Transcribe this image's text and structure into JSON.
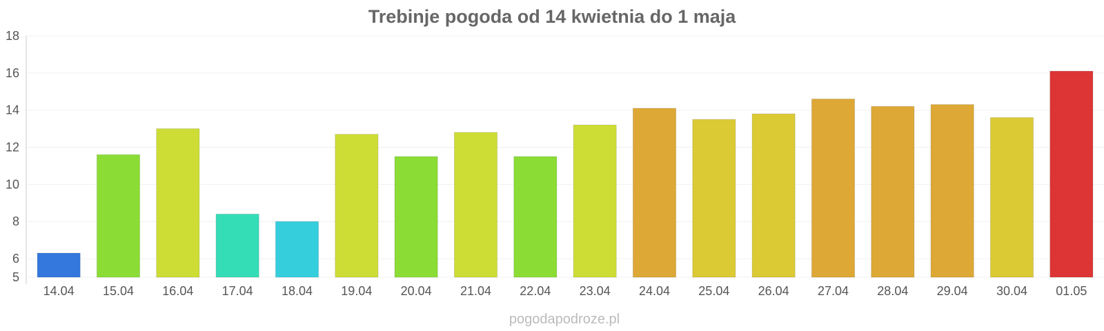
{
  "chart_data": {
    "type": "bar",
    "title": "Trebinje pogoda od 14 kwietnia do 1 maja",
    "categories": [
      "14.04",
      "15.04",
      "16.04",
      "17.04",
      "18.04",
      "19.04",
      "20.04",
      "21.04",
      "22.04",
      "23.04",
      "24.04",
      "25.04",
      "26.04",
      "27.04",
      "28.04",
      "29.04",
      "30.04",
      "01.05"
    ],
    "values": [
      6.3,
      11.6,
      13.0,
      8.4,
      8.0,
      12.7,
      11.5,
      12.8,
      11.5,
      13.2,
      14.1,
      13.5,
      13.8,
      14.6,
      14.2,
      14.3,
      13.6,
      16.1
    ],
    "colors": [
      "#3578dd",
      "#8bdd35",
      "#cedd35",
      "#35ddb6",
      "#35cedd",
      "#cedd35",
      "#8bdd35",
      "#cedd35",
      "#8bdd35",
      "#cedd35",
      "#dda835",
      "#dcca35",
      "#dcca35",
      "#dda835",
      "#dda835",
      "#dda835",
      "#dcca35",
      "#dd3535"
    ],
    "yticks": [
      5,
      6,
      8,
      10,
      12,
      14,
      16,
      18
    ],
    "ylim": [
      5,
      18
    ],
    "xlabel": "",
    "ylabel": "",
    "grid": true
  },
  "footer": {
    "credit": "pogodapodroze.pl"
  }
}
